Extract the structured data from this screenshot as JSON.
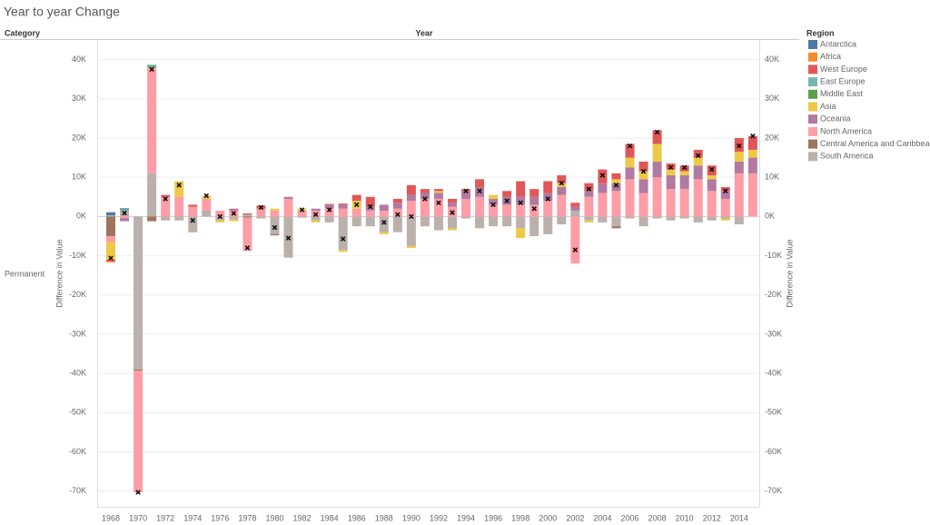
{
  "chart_data": {
    "type": "bar",
    "stacked": true,
    "title": "Year to year Change",
    "row_header": "Category",
    "x_label": "Year",
    "row_label": "Permanent",
    "y_label": "Difference in Value",
    "y2_label": "Difference in Value",
    "legend_title": "Region",
    "legend": "right",
    "grid": true,
    "categories": [
      "1968",
      null,
      "1970",
      null,
      "1972",
      null,
      "1974",
      null,
      "1976",
      null,
      "1978",
      null,
      "1980",
      null,
      "1982",
      null,
      "1984",
      null,
      "1986",
      null,
      "1988",
      null,
      "1990",
      null,
      "1992",
      null,
      "1994",
      null,
      "1996",
      null,
      "1998",
      null,
      "2000",
      null,
      "2002",
      null,
      "2004",
      null,
      "2006",
      null,
      "2008",
      null,
      "2010",
      null,
      "2012",
      null,
      "2014",
      null
    ],
    "ylim": [
      -74000,
      45000
    ],
    "yticks": [
      {
        "value": -70000,
        "label": "-70K"
      },
      {
        "value": -60000,
        "label": "-60K"
      },
      {
        "value": -50000,
        "label": "-50K"
      },
      {
        "value": -40000,
        "label": "-40K"
      },
      {
        "value": -30000,
        "label": "-30K"
      },
      {
        "value": -20000,
        "label": "-20K"
      },
      {
        "value": -10000,
        "label": "-10K"
      },
      {
        "value": 0,
        "label": "0K"
      },
      {
        "value": 10000,
        "label": "10K"
      },
      {
        "value": 20000,
        "label": "20K"
      },
      {
        "value": 30000,
        "label": "30K"
      },
      {
        "value": 40000,
        "label": "40K"
      }
    ],
    "y2lim": [
      -74000,
      45000
    ],
    "y2ticks": [
      {
        "value": -70000,
        "label": "-70K"
      },
      {
        "value": -60000,
        "label": "-60K"
      },
      {
        "value": -50000,
        "label": "-50K"
      },
      {
        "value": -40000,
        "label": "-40K"
      },
      {
        "value": -30000,
        "label": "-30K"
      },
      {
        "value": -20000,
        "label": "-20K"
      },
      {
        "value": -10000,
        "label": "-10K"
      },
      {
        "value": 0,
        "label": "0K"
      },
      {
        "value": 10000,
        "label": "10K"
      },
      {
        "value": 20000,
        "label": "20K"
      },
      {
        "value": 30000,
        "label": "30K"
      },
      {
        "value": 40000,
        "label": "40K"
      }
    ],
    "series": [
      {
        "name": "Antarctica",
        "color": "#4e79a7",
        "values": [
          800,
          300,
          0,
          0,
          0,
          0,
          0,
          0,
          0,
          0,
          0,
          0,
          0,
          0,
          0,
          0,
          0,
          0,
          0,
          0,
          0,
          0,
          0,
          0,
          0,
          0,
          0,
          0,
          0,
          0,
          0,
          0,
          0,
          0,
          0,
          0,
          0,
          0,
          0,
          0,
          0,
          0,
          0,
          0,
          0,
          0,
          0,
          0
        ]
      },
      {
        "name": "Africa",
        "color": "#f28e2b",
        "values": [
          -300,
          0,
          0,
          0,
          0,
          0,
          0,
          0,
          0,
          0,
          0,
          0,
          0,
          0,
          0,
          0,
          0,
          0,
          0,
          0,
          0,
          0,
          0,
          0,
          0,
          0,
          0,
          0,
          0,
          0,
          0,
          0,
          0,
          0,
          0,
          0,
          0,
          0,
          0,
          0,
          0,
          0,
          0,
          0,
          0,
          0,
          0,
          0
        ]
      },
      {
        "name": "West Europe",
        "color": "#e15759",
        "values": [
          -400,
          0,
          0,
          0,
          500,
          0,
          500,
          0,
          0,
          0,
          300,
          800,
          0,
          0,
          0,
          0,
          200,
          300,
          1500,
          2500,
          0,
          1000,
          2500,
          1000,
          500,
          1000,
          500,
          2000,
          0,
          1500,
          4000,
          2000,
          3000,
          2000,
          1000,
          2000,
          3500,
          1500,
          3500,
          2500,
          3500,
          1500,
          1500,
          2000,
          2500,
          1000,
          3500,
          3500
        ]
      },
      {
        "name": "East Europe",
        "color": "#76b7b2",
        "values": [
          0,
          300,
          0,
          400,
          0,
          0,
          0,
          0,
          0,
          0,
          0,
          0,
          0,
          0,
          0,
          0,
          0,
          0,
          0,
          0,
          0,
          0,
          0,
          0,
          0,
          0,
          0,
          0,
          0,
          0,
          0,
          0,
          0,
          0,
          0,
          0,
          0,
          0,
          0,
          0,
          0,
          0,
          0,
          0,
          0,
          0,
          0,
          0
        ]
      },
      {
        "name": "Middle East",
        "color": "#59a14f",
        "values": [
          0,
          0,
          0,
          300,
          0,
          0,
          0,
          0,
          0,
          0,
          0,
          0,
          0,
          0,
          0,
          0,
          0,
          0,
          0,
          0,
          0,
          0,
          0,
          0,
          0,
          0,
          0,
          0,
          0,
          0,
          0,
          0,
          0,
          0,
          0,
          0,
          0,
          0,
          0,
          0,
          0,
          0,
          0,
          0,
          0,
          0,
          0,
          0
        ]
      },
      {
        "name": "Asia",
        "color": "#edc948",
        "values": [
          -4500,
          0,
          0,
          0,
          0,
          4000,
          0,
          800,
          -500,
          -500,
          0,
          0,
          500,
          0,
          500,
          -500,
          0,
          -500,
          2000,
          0,
          -500,
          0,
          -500,
          0,
          500,
          -500,
          0,
          0,
          1000,
          0,
          -2500,
          0,
          0,
          1000,
          0,
          -500,
          0,
          1000,
          2500,
          2000,
          4500,
          1500,
          1000,
          2000,
          1000,
          -500,
          2500,
          2000
        ]
      },
      {
        "name": "Oceania",
        "color": "#b07aa1",
        "values": [
          0,
          -800,
          0,
          0,
          0,
          0,
          0,
          0,
          0,
          500,
          0,
          0,
          0,
          500,
          0,
          500,
          1000,
          1000,
          0,
          1000,
          1500,
          1500,
          1500,
          1500,
          1500,
          1000,
          2000,
          2500,
          1500,
          2000,
          2000,
          2000,
          2000,
          2000,
          1000,
          1500,
          2500,
          2000,
          3000,
          3500,
          4000,
          3500,
          3500,
          3500,
          3000,
          2000,
          3000,
          4000
        ]
      },
      {
        "name": "North America",
        "color": "#ff9da7",
        "values": [
          -1500,
          -400,
          -31000,
          27000,
          5000,
          5000,
          2500,
          3000,
          1500,
          1500,
          -8500,
          2000,
          1500,
          4500,
          1500,
          1500,
          2000,
          2000,
          2000,
          1500,
          1500,
          2000,
          4000,
          4500,
          4500,
          2500,
          4500,
          5000,
          3000,
          3000,
          3000,
          3000,
          4000,
          5500,
          -12000,
          5000,
          6000,
          6500,
          9500,
          6000,
          10000,
          7000,
          7000,
          9500,
          6500,
          4500,
          11000,
          11000
        ]
      },
      {
        "name": "Central America and Caribbean",
        "color": "#9c755f",
        "values": [
          -5000,
          0,
          -300,
          -1200,
          0,
          0,
          0,
          0,
          0,
          0,
          -300,
          0,
          -300,
          0,
          0,
          0,
          0,
          0,
          0,
          0,
          0,
          0,
          0,
          0,
          0,
          0,
          0,
          0,
          0,
          0,
          0,
          0,
          0,
          0,
          0,
          0,
          0,
          -500,
          0,
          0,
          0,
          0,
          0,
          0,
          0,
          0,
          0,
          0
        ]
      },
      {
        "name": "South America",
        "color": "#bab0ac",
        "values": [
          300,
          1500,
          -39000,
          11000,
          -1000,
          -1000,
          -4000,
          1500,
          -1000,
          -700,
          500,
          -500,
          -4500,
          -10500,
          -300,
          -1000,
          -1500,
          -8500,
          -2500,
          -2500,
          -4000,
          -4000,
          -7500,
          -2500,
          -3500,
          -3000,
          -500,
          -3000,
          -2500,
          -2500,
          -3000,
          -5000,
          -4500,
          -2000,
          1500,
          -1000,
          -1500,
          -2500,
          -500,
          -2500,
          -500,
          -1000,
          -500,
          -1500,
          -1000,
          -500,
          -2000,
          0
        ]
      }
    ]
  }
}
